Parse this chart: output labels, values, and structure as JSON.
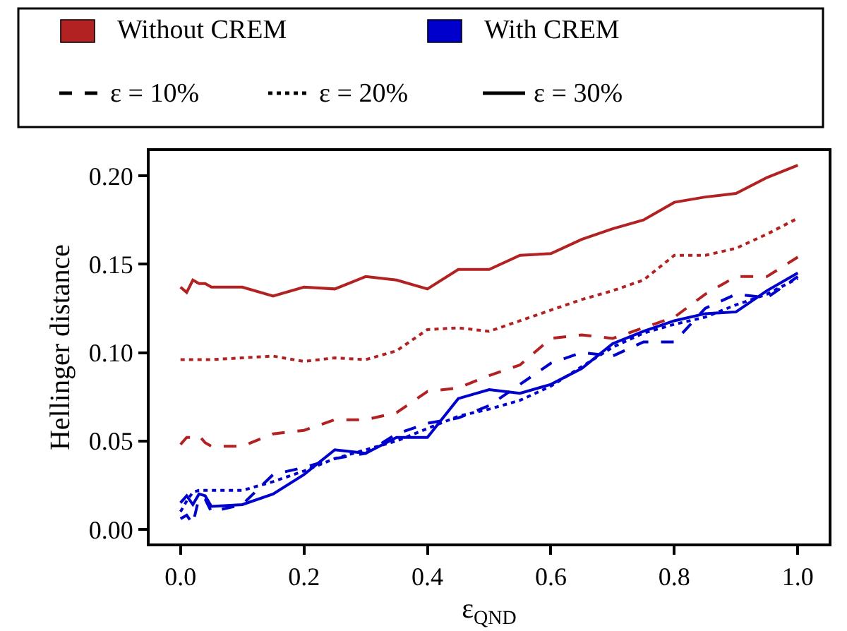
{
  "chart_data": {
    "type": "line",
    "xlabel": "ε$_{QND}$",
    "ylabel": "Hellinger distance",
    "x": [
      0,
      0.01,
      0.02,
      0.03,
      0.04,
      0.05,
      0.1,
      0.15,
      0.2,
      0.25,
      0.3,
      0.35,
      0.4,
      0.45,
      0.5,
      0.55,
      0.6,
      0.65,
      0.7,
      0.75,
      0.8,
      0.85,
      0.9,
      0.95,
      1.0
    ],
    "series": [
      {
        "color": "#b22222",
        "line_style": "dashed",
        "values": [
          0.048,
          0.052,
          0.052,
          0.053,
          0.049,
          0.047,
          0.047,
          0.054,
          0.056,
          0.062,
          0.062,
          0.066,
          0.078,
          0.08,
          0.087,
          0.093,
          0.108,
          0.11,
          0.108,
          0.114,
          0.12,
          0.133,
          0.143,
          0.143,
          0.154
        ]
      },
      {
        "color": "#b22222",
        "line_style": "dotted",
        "values": [
          0.096,
          0.096,
          0.096,
          0.096,
          0.096,
          0.096,
          0.097,
          0.098,
          0.095,
          0.097,
          0.096,
          0.101,
          0.113,
          0.114,
          0.112,
          0.118,
          0.124,
          0.13,
          0.135,
          0.141,
          0.155,
          0.155,
          0.159,
          0.167,
          0.176
        ]
      },
      {
        "color": "#b22222",
        "line_style": "solid",
        "values": [
          0.137,
          0.134,
          0.141,
          0.139,
          0.139,
          0.137,
          0.137,
          0.132,
          0.137,
          0.136,
          0.143,
          0.141,
          0.136,
          0.147,
          0.147,
          0.155,
          0.156,
          0.164,
          0.17,
          0.175,
          0.185,
          0.188,
          0.19,
          0.199,
          0.206
        ]
      },
      {
        "color": "#0000cd",
        "line_style": "dashed",
        "values": [
          0.006,
          0.008,
          0.003,
          0.018,
          0.017,
          0.01,
          0.014,
          0.031,
          0.035,
          0.04,
          0.043,
          0.054,
          0.06,
          0.063,
          0.07,
          0.082,
          0.094,
          0.1,
          0.098,
          0.106,
          0.106,
          0.125,
          0.133,
          0.131,
          0.143
        ]
      },
      {
        "color": "#0000cd",
        "line_style": "dotted",
        "values": [
          0.01,
          0.016,
          0.021,
          0.022,
          0.022,
          0.022,
          0.022,
          0.027,
          0.033,
          0.04,
          0.045,
          0.05,
          0.057,
          0.064,
          0.068,
          0.073,
          0.081,
          0.092,
          0.103,
          0.111,
          0.116,
          0.12,
          0.127,
          0.133,
          0.142
        ]
      },
      {
        "color": "#0000cd",
        "line_style": "solid",
        "values": [
          0.015,
          0.019,
          0.014,
          0.02,
          0.019,
          0.013,
          0.014,
          0.02,
          0.031,
          0.045,
          0.043,
          0.052,
          0.052,
          0.074,
          0.079,
          0.077,
          0.082,
          0.091,
          0.105,
          0.112,
          0.118,
          0.122,
          0.123,
          0.135,
          0.145
        ]
      }
    ],
    "annotations": [
      "Without CREM",
      "With CREM",
      "ε = 10%",
      "ε = 20%",
      "ε = 30%"
    ],
    "xlim": [
      -0.05,
      1.05
    ],
    "xticks": [
      {
        "value": 0.0,
        "label": "0.0"
      },
      {
        "value": 0.2,
        "label": "0.2"
      },
      {
        "value": 0.4,
        "label": "0.4"
      },
      {
        "value": 0.6,
        "label": "0.6"
      },
      {
        "value": 0.8,
        "label": "0.8"
      },
      {
        "value": 1.0,
        "label": "1.0"
      }
    ],
    "ylim": [
      -0.008,
      0.214
    ],
    "yticks": [
      {
        "value": 0.0,
        "label": "0.00"
      },
      {
        "value": 0.05,
        "label": "0.05"
      },
      {
        "value": 0.1,
        "label": "0.10"
      },
      {
        "value": 0.15,
        "label": "0.15"
      },
      {
        "value": 0.2,
        "label": "0.20"
      }
    ],
    "marker": "none"
  }
}
